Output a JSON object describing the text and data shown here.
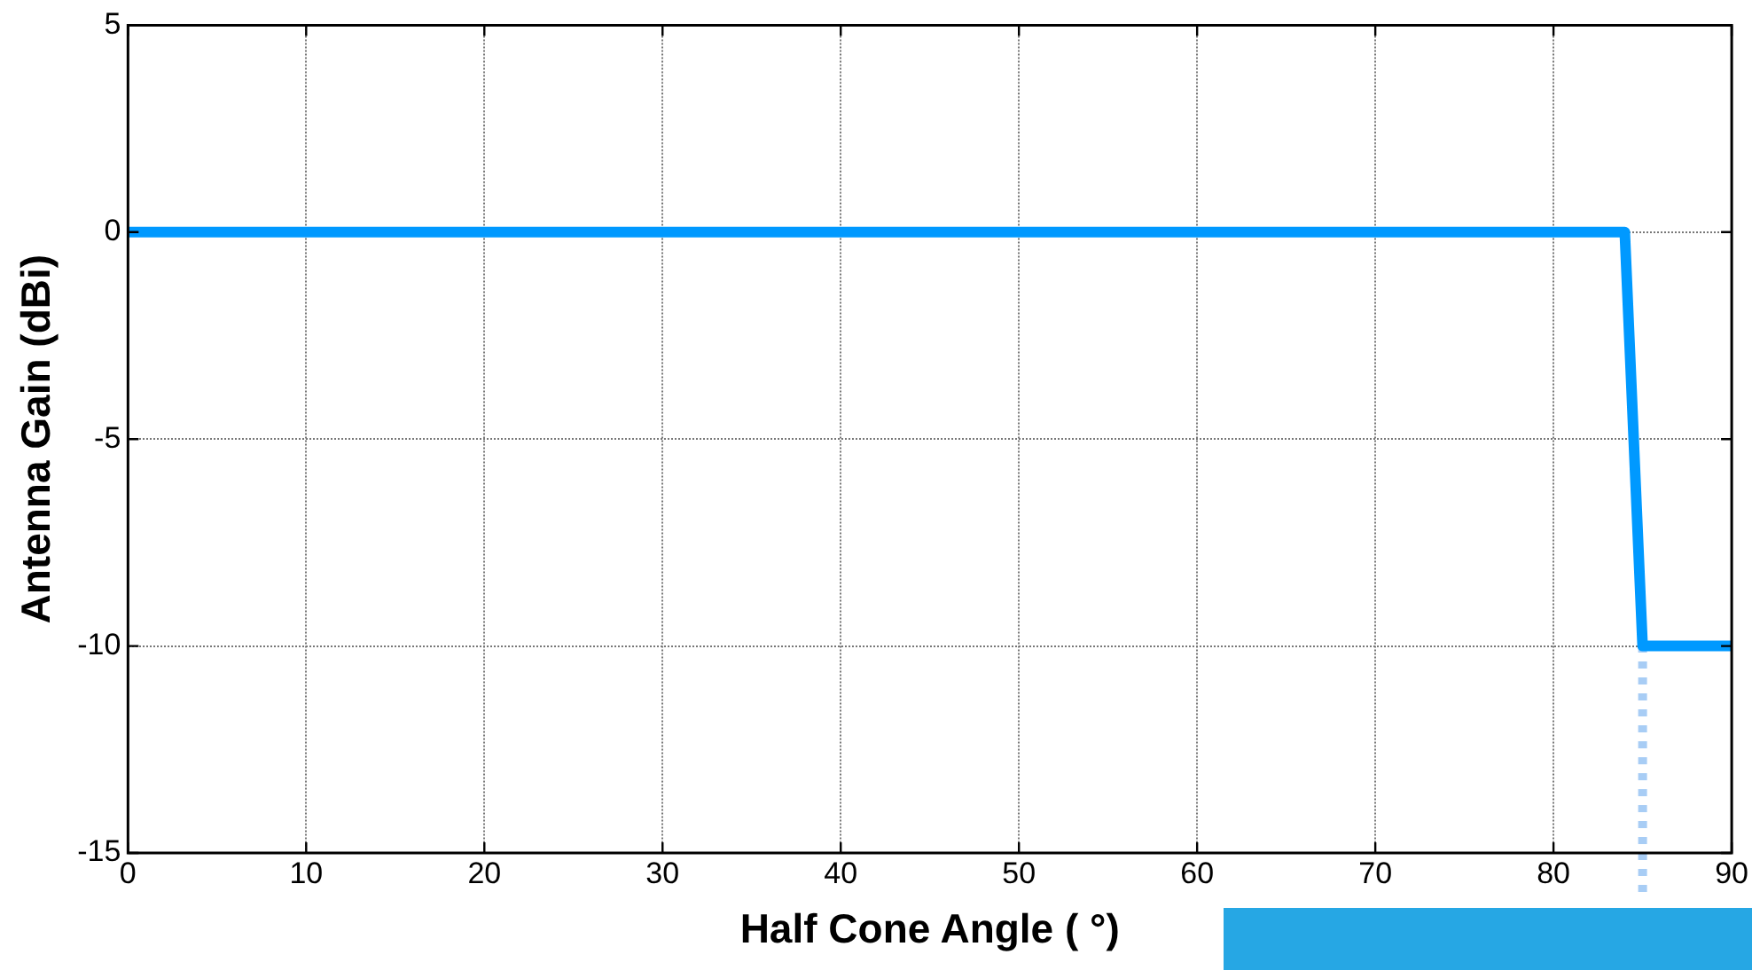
{
  "chart_data": {
    "type": "line",
    "xlabel": "Half Cone Angle ( °)",
    "ylabel": "Antenna Gain (dBi)",
    "series": [
      {
        "color": "#0099ff",
        "x": [
          0,
          84,
          85,
          90
        ],
        "values": [
          0,
          0,
          -10,
          -10
        ]
      }
    ],
    "xlim": [
      0,
      90
    ],
    "xticks": [
      0,
      10,
      20,
      30,
      40,
      50,
      60,
      70,
      80,
      90
    ],
    "ylim": [
      -15,
      5
    ],
    "yticks": [
      -15,
      -10,
      -5,
      0,
      5
    ],
    "grid": true,
    "marker": "none",
    "line_style": "solid",
    "ref_lines": [
      {
        "axis": "x",
        "value": 85,
        "color": "#a8cdf5",
        "line_style": "dotted"
      }
    ]
  }
}
